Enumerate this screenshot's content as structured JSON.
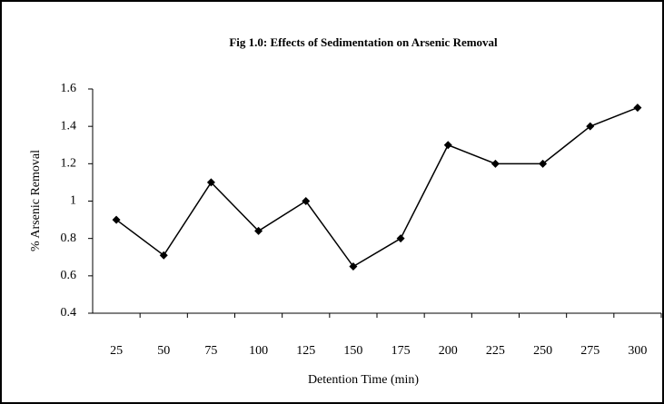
{
  "chart_data": {
    "type": "line",
    "title": "Fig 1.0: Effects of Sedimentation on Arsenic Removal",
    "x_label": "Detention Time (min)",
    "y_label": "% Arsenic  Removal",
    "categories": [
      "25",
      "50",
      "75",
      "100",
      "125",
      "150",
      "175",
      "200",
      "225",
      "250",
      "275",
      "300"
    ],
    "series": [
      {
        "name": "% Arsenic Removal",
        "color": "#000000",
        "values": [
          0.9,
          0.71,
          1.1,
          0.84,
          1.0,
          0.65,
          0.8,
          1.3,
          1.2,
          1.2,
          1.4,
          1.5
        ]
      }
    ],
    "ylim": [
      0.4,
      1.6
    ],
    "yticks": [
      0.4,
      0.6,
      0.8,
      1,
      1.2,
      1.4,
      1.6
    ],
    "grid": false,
    "legend": false
  }
}
